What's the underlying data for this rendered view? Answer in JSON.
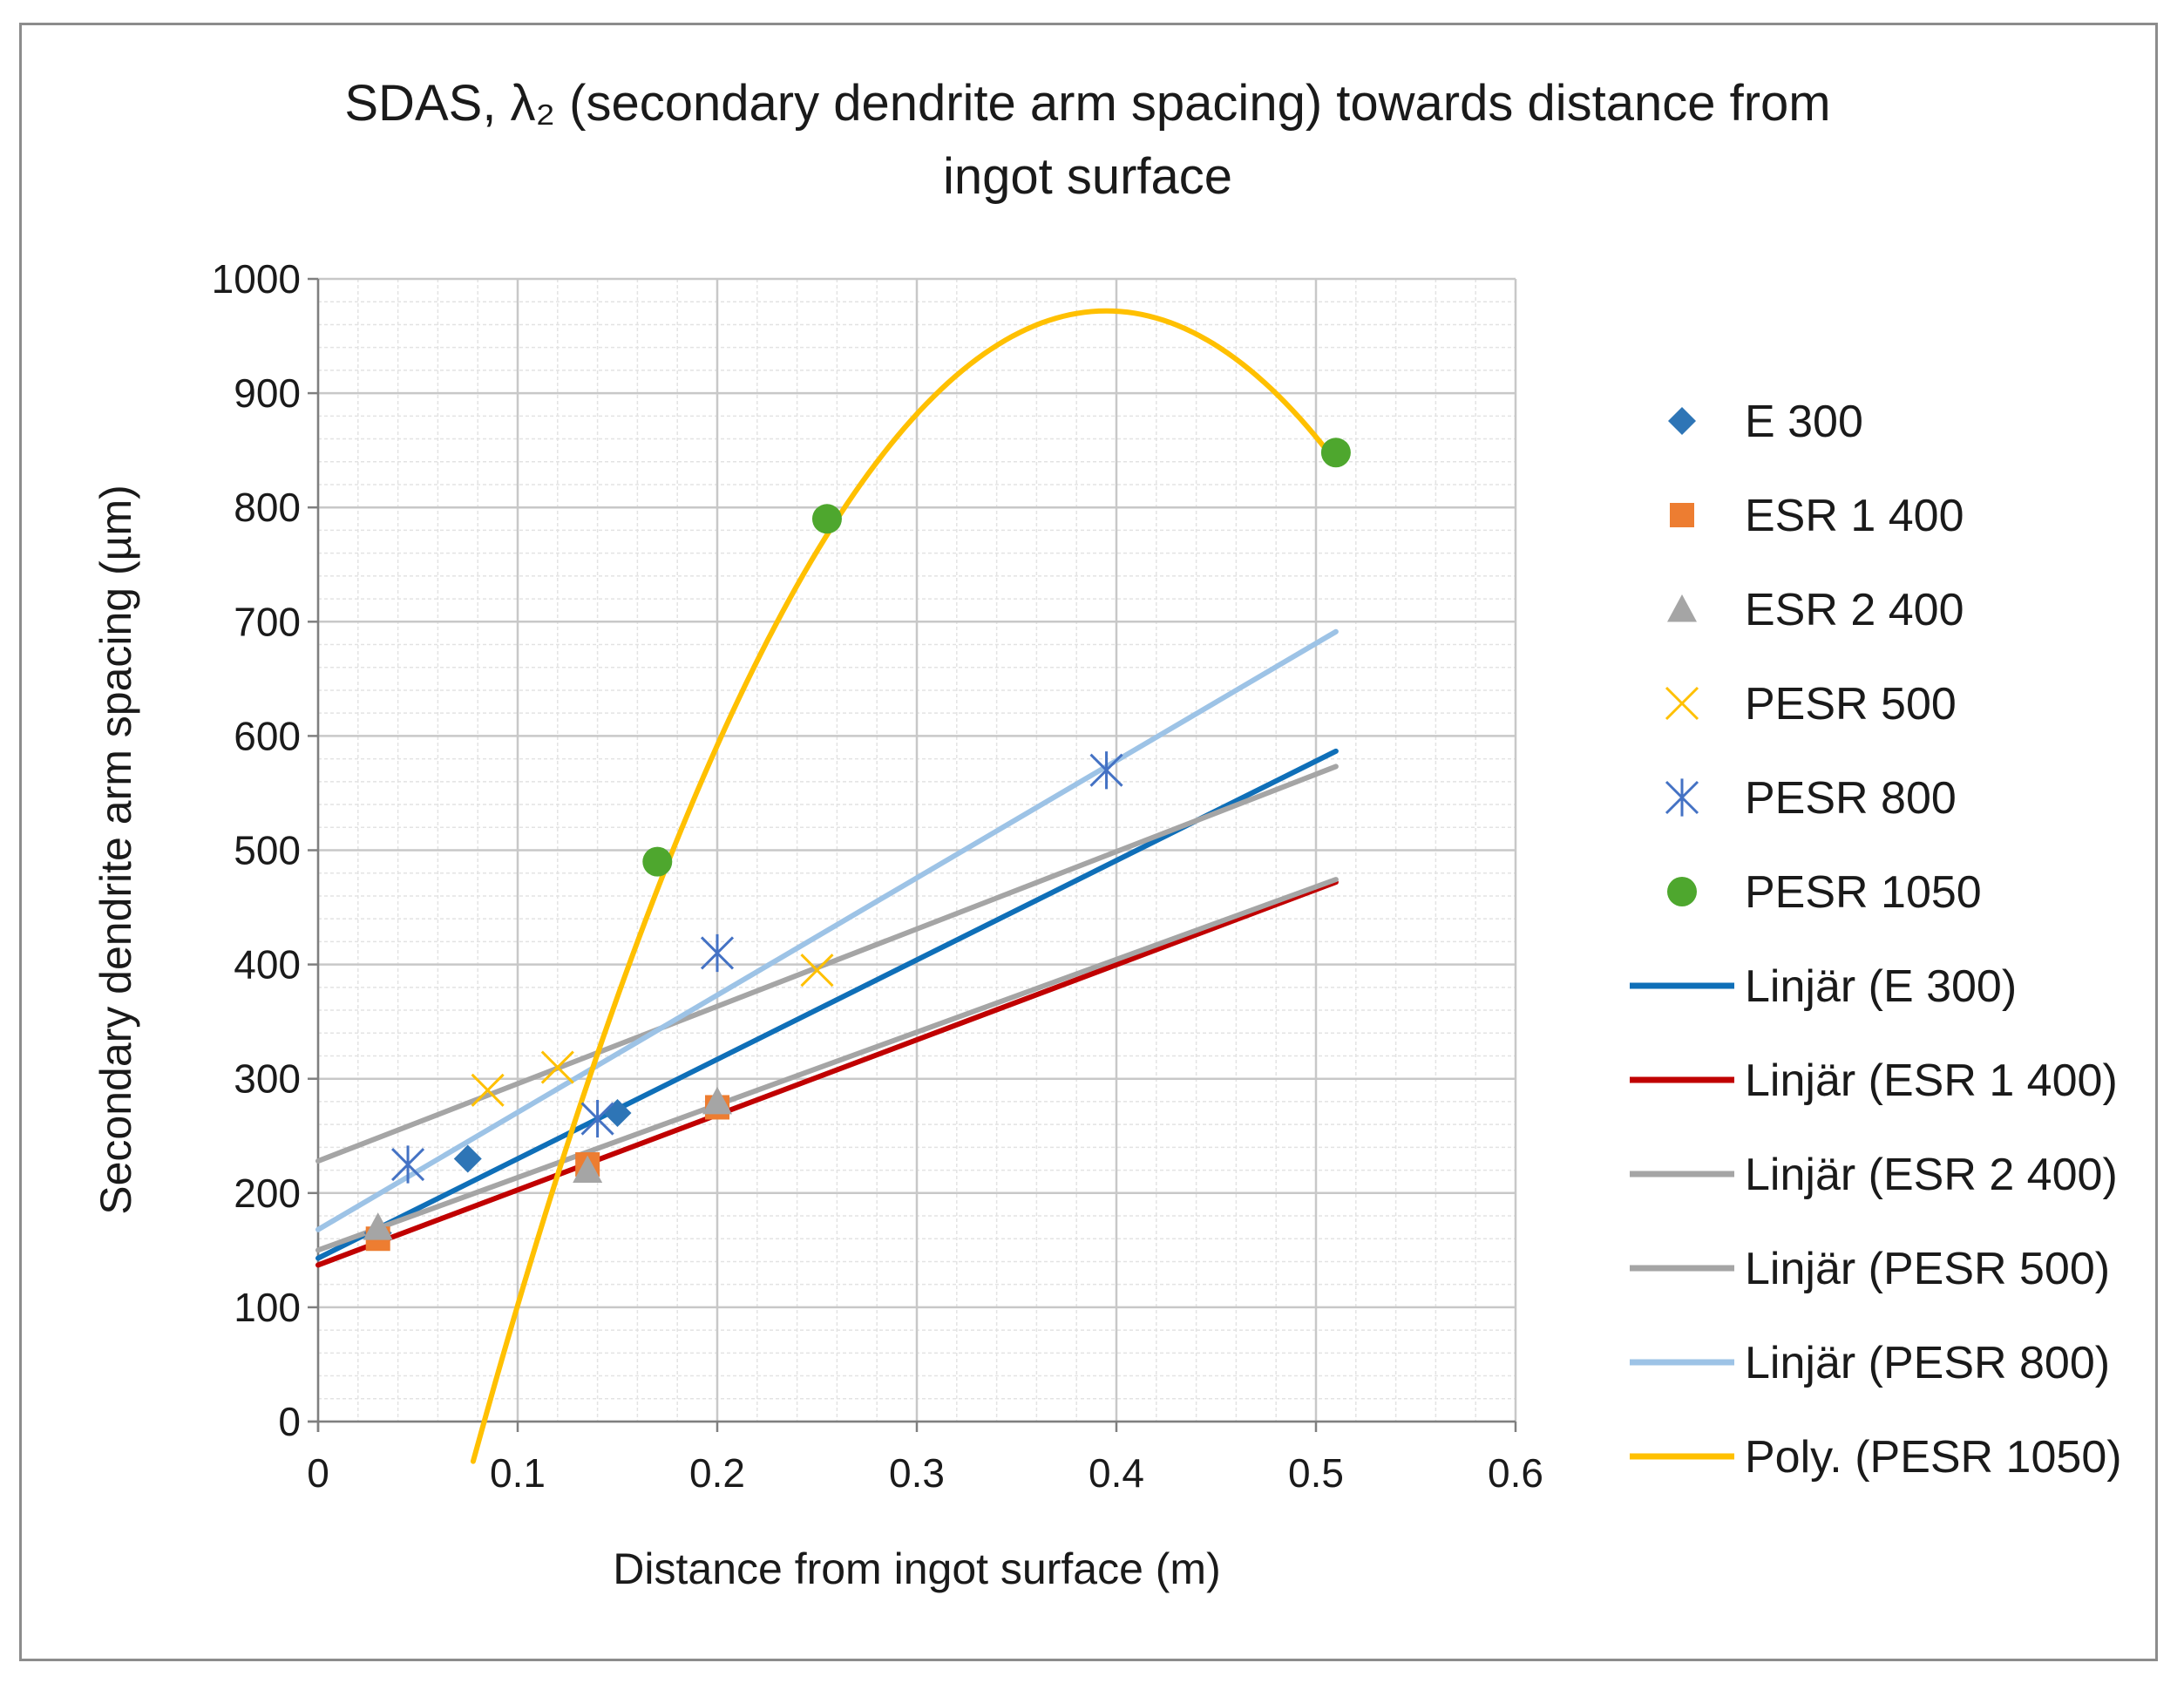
{
  "chart_data": {
    "type": "scatter",
    "title": {
      "line1": "SDAS, λ₂  (secondary dendrite arm spacing) towards distance from",
      "line2": "ingot surface"
    },
    "xlabel": "Distance from ingot surface (m)",
    "ylabel": "Secondary dendrite arm spacing (µm)",
    "xlim": [
      0,
      0.6
    ],
    "ylim": [
      0,
      1000
    ],
    "x_major": 0.1,
    "y_major": 100,
    "x_ticks": [
      "0",
      "0.1",
      "0.2",
      "0.3",
      "0.4",
      "0.5",
      "0.6"
    ],
    "y_ticks": [
      "0",
      "100",
      "200",
      "300",
      "400",
      "500",
      "600",
      "700",
      "800",
      "900",
      "1000"
    ],
    "grid": true,
    "legend_position": "right",
    "series": [
      {
        "name": "E 300",
        "marker": "diamond",
        "color": "#2e75b6",
        "x": [
          0.03,
          0.075,
          0.15
        ],
        "y": [
          165,
          230,
          270
        ]
      },
      {
        "name": "ESR 1 400",
        "marker": "square",
        "color": "#ed7d31",
        "x": [
          0.03,
          0.135,
          0.2
        ],
        "y": [
          160,
          225,
          275
        ]
      },
      {
        "name": "ESR 2 400",
        "marker": "triangle",
        "color": "#a5a5a5",
        "x": [
          0.03,
          0.135,
          0.2
        ],
        "y": [
          170,
          220,
          280
        ]
      },
      {
        "name": "PESR 500",
        "marker": "x",
        "color": "#ffc000",
        "x": [
          0.085,
          0.12,
          0.25
        ],
        "y": [
          290,
          310,
          395
        ]
      },
      {
        "name": "PESR 800",
        "marker": "asterisk",
        "color": "#4472c4",
        "x": [
          0.045,
          0.14,
          0.2,
          0.395
        ],
        "y": [
          225,
          265,
          410,
          570
        ]
      },
      {
        "name": "PESR 1050",
        "marker": "circle",
        "color": "#4ea72e",
        "x": [
          0.17,
          0.255,
          0.51
        ],
        "y": [
          490,
          790,
          848
        ]
      }
    ],
    "trendlines": [
      {
        "name": "Linjär (E 300)",
        "kind": "linear",
        "color": "#0f6fb8",
        "intercept": 143,
        "slope": 870,
        "x_range": [
          0,
          0.51
        ]
      },
      {
        "name": "Linjär (ESR 1 400)",
        "kind": "linear",
        "color": "#c00000",
        "intercept": 137,
        "slope": 657,
        "x_range": [
          0,
          0.51
        ]
      },
      {
        "name": "Linjär (ESR 2 400)",
        "kind": "linear",
        "color": "#a5a5a5",
        "intercept": 150,
        "slope": 636,
        "x_range": [
          0,
          0.51
        ]
      },
      {
        "name": "Linjär (PESR 500)",
        "kind": "linear",
        "color": "#a5a5a5",
        "intercept": 228,
        "slope": 677,
        "x_range": [
          0,
          0.51
        ]
      },
      {
        "name": "Linjär (PESR 800)",
        "kind": "linear",
        "color": "#9dc3e6",
        "intercept": 168,
        "slope": 1026,
        "x_range": [
          0,
          0.51
        ]
      },
      {
        "name": "Poly. (PESR 1050)",
        "kind": "poly2",
        "color": "#ffc000",
        "vertex_x": 0.395,
        "vertex_y": 972,
        "a": -10000,
        "x_range": [
          0.0777,
          0.51
        ]
      }
    ]
  }
}
